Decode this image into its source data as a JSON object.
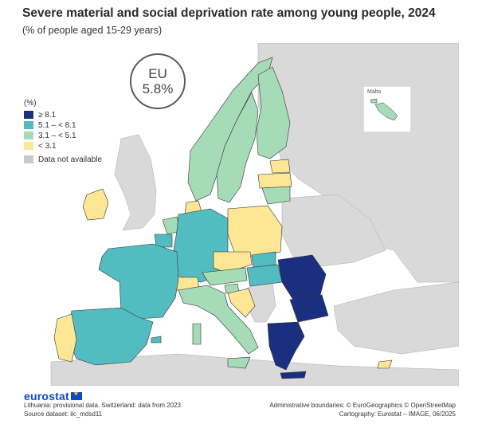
{
  "title": "Severe material and social deprivation rate among young people, 2024",
  "subtitle": "(% of people aged 15-29 years)",
  "eu_badge": {
    "name": "EU",
    "value": "5.8%"
  },
  "legend": {
    "title": "(%)",
    "classes": [
      {
        "label": "≥ 8.1",
        "color": "#1a2f80"
      },
      {
        "label": "5.1 – < 8.1",
        "color": "#52bcc1"
      },
      {
        "label": "3.1 – < 5.1",
        "color": "#a6dbb8"
      },
      {
        "label": "< 3.1",
        "color": "#fde794"
      }
    ],
    "na_label": "Data not available",
    "na_color": "#c9c9c9"
  },
  "inset": {
    "label": "Malta"
  },
  "footer": {
    "logo": "eurostat",
    "note1": "Lithuania: provisional data. Switzerland: data from 2023",
    "note2": "Source dataset: ilc_mdsd11",
    "credit1": "Administrative boundaries: © EuroGeographics © OpenStreetMap",
    "credit2": "Cartography: Eurostat – IMAGE, 06/2025"
  },
  "map_regions": [
    {
      "name": "Spain",
      "class": "5.1 – < 8.1"
    },
    {
      "name": "France",
      "class": "5.1 – < 8.1"
    },
    {
      "name": "Germany",
      "class": "5.1 – < 8.1"
    },
    {
      "name": "Portugal",
      "class": "< 3.1"
    },
    {
      "name": "Ireland",
      "class": "< 3.1"
    },
    {
      "name": "Poland",
      "class": "< 3.1"
    },
    {
      "name": "Czechia",
      "class": "< 3.1"
    },
    {
      "name": "Romania",
      "class": "≥ 8.1"
    },
    {
      "name": "Bulgaria",
      "class": "≥ 8.1"
    },
    {
      "name": "Greece",
      "class": "≥ 8.1"
    },
    {
      "name": "Norway",
      "class": "3.1 – < 5.1"
    },
    {
      "name": "Sweden",
      "class": "3.1 – < 5.1"
    },
    {
      "name": "Finland",
      "class": "3.1 – < 5.1"
    },
    {
      "name": "Italy",
      "class": "3.1 – < 5.1"
    }
  ]
}
